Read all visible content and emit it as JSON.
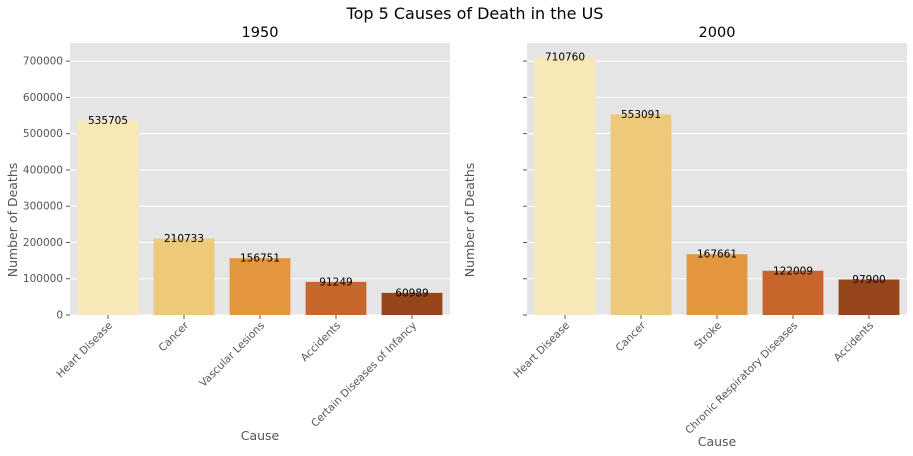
{
  "title": "Top 5 Causes of Death in the US",
  "colors": [
    "#f7e8b8",
    "#eec979",
    "#e4963f",
    "#c6662a",
    "#96441a"
  ],
  "chart_data": [
    {
      "type": "bar",
      "title": "1950",
      "xlabel": "Cause",
      "ylabel": "Number of Deaths",
      "ylim": [
        0,
        750000
      ],
      "yticks": [
        0,
        100000,
        200000,
        300000,
        400000,
        500000,
        600000,
        700000
      ],
      "grid": true,
      "categories": [
        "Heart Disease",
        "Cancer",
        "Vascular Lesions",
        "Accidents",
        "Certain Diseases of Infancy"
      ],
      "values": [
        535705,
        210733,
        156751,
        91249,
        60989
      ]
    },
    {
      "type": "bar",
      "title": "2000",
      "xlabel": "Cause",
      "ylabel": "Number of Deaths",
      "ylim": [
        0,
        750000
      ],
      "yticks": [
        0,
        100000,
        200000,
        300000,
        400000,
        500000,
        600000,
        700000
      ],
      "grid": true,
      "categories": [
        "Heart Disease",
        "Cancer",
        "Stroke",
        "Chronic Respiratory Diseases",
        "Accidents"
      ],
      "values": [
        710760,
        553091,
        167661,
        122009,
        97900
      ]
    }
  ]
}
